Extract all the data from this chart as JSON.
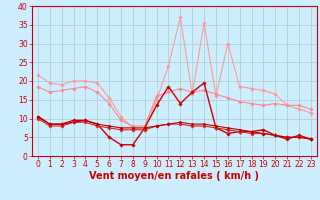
{
  "x": [
    0,
    1,
    2,
    3,
    4,
    5,
    6,
    7,
    8,
    9,
    10,
    11,
    12,
    13,
    14,
    15,
    16,
    17,
    18,
    19,
    20,
    21,
    22,
    23
  ],
  "series": [
    {
      "name": "line1_light_pink_high",
      "color": "#ff9999",
      "linewidth": 0.8,
      "marker": "D",
      "markersize": 1.8,
      "y": [
        21.5,
        19.5,
        19.0,
        20.0,
        20.0,
        19.5,
        15.5,
        10.5,
        7.5,
        7.0,
        15.0,
        24.0,
        37.0,
        16.5,
        35.5,
        16.0,
        30.0,
        18.5,
        18.0,
        17.5,
        16.5,
        13.5,
        12.5,
        11.5
      ]
    },
    {
      "name": "line2_medium_pink",
      "color": "#ff8888",
      "linewidth": 0.8,
      "marker": "D",
      "markersize": 1.8,
      "y": [
        18.5,
        17.0,
        17.5,
        18.0,
        18.5,
        17.0,
        14.0,
        9.5,
        8.0,
        8.0,
        16.0,
        17.0,
        18.0,
        17.0,
        17.5,
        16.5,
        15.5,
        14.5,
        14.0,
        13.5,
        14.0,
        13.5,
        13.5,
        12.5
      ]
    },
    {
      "name": "line3_dark_red_main",
      "color": "#cc0000",
      "linewidth": 1.0,
      "marker": "D",
      "markersize": 1.8,
      "y": [
        10.5,
        8.5,
        8.5,
        9.5,
        9.5,
        8.5,
        5.0,
        3.0,
        3.0,
        7.5,
        13.5,
        18.5,
        14.0,
        17.0,
        19.5,
        7.5,
        6.0,
        6.5,
        6.5,
        7.0,
        5.5,
        4.5,
        5.5,
        4.5
      ]
    },
    {
      "name": "line4_dark_red2",
      "color": "#dd2222",
      "linewidth": 0.8,
      "marker": "D",
      "markersize": 1.8,
      "y": [
        10.0,
        8.0,
        8.0,
        9.0,
        9.0,
        8.0,
        7.5,
        7.0,
        7.0,
        7.0,
        8.0,
        8.5,
        8.5,
        8.0,
        8.0,
        7.5,
        7.0,
        6.5,
        6.0,
        6.0,
        5.5,
        5.0,
        5.0,
        4.5
      ]
    },
    {
      "name": "line5_dark_red3",
      "color": "#bb0000",
      "linewidth": 0.8,
      "marker": "D",
      "markersize": 1.5,
      "y": [
        10.5,
        8.5,
        8.5,
        9.0,
        9.5,
        8.5,
        8.0,
        7.5,
        7.5,
        7.5,
        8.0,
        8.5,
        9.0,
        8.5,
        8.5,
        8.0,
        7.5,
        7.0,
        6.5,
        6.0,
        5.5,
        5.0,
        5.0,
        4.5
      ]
    }
  ],
  "xlabel": "Vent moyen/en rafales ( km/h )",
  "ylim": [
    0,
    40
  ],
  "yticks": [
    0,
    5,
    10,
    15,
    20,
    25,
    30,
    35,
    40
  ],
  "xticks": [
    0,
    1,
    2,
    3,
    4,
    5,
    6,
    7,
    8,
    9,
    10,
    11,
    12,
    13,
    14,
    15,
    16,
    17,
    18,
    19,
    20,
    21,
    22,
    23
  ],
  "background_color": "#cceeff",
  "grid_color": "#aacccc",
  "tick_color": "#cc0000",
  "xlabel_color": "#cc0000",
  "xlabel_fontsize": 7,
  "tick_fontsize": 5.5,
  "fig_width": 3.2,
  "fig_height": 2.0,
  "dpi": 100
}
